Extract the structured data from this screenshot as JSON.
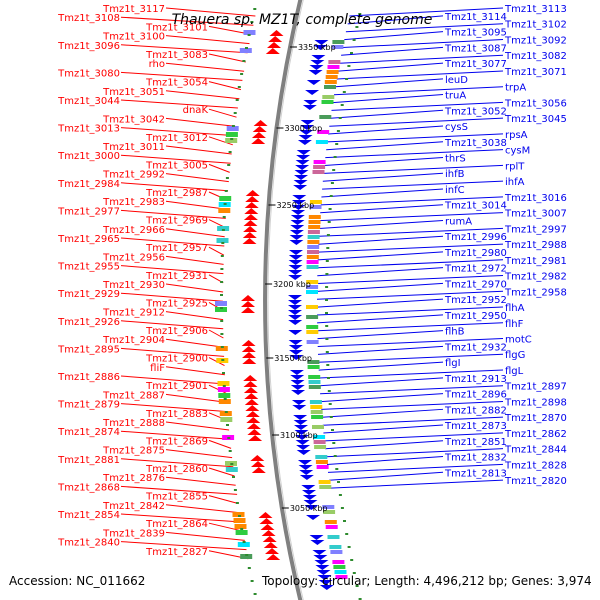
{
  "title": "Thauera sp. MZ1T, complete genome",
  "footer": {
    "accession": "Accession: NC_011662",
    "topology": "Topology: circular; Length: 4,496,212 bp; Genes: 3,974"
  },
  "colors": {
    "forward": "#ff0000",
    "reverse": "#0000ee",
    "backbone": "#808080",
    "tick": "#2e8b2e"
  },
  "scale_ticks": [
    "3350 kbp",
    "3300 kbp",
    "3250 kbp",
    "3200 kbp",
    "3150 kbp",
    "3100 kbp",
    "3050 kbp"
  ],
  "left_labels": [
    "Tmz1t_3117",
    "Tmz1t_3108",
    "Tmz1t_3101",
    "Tmz1t_3100",
    "Tmz1t_3096",
    "Tmz1t_3083",
    "rho",
    "Tmz1t_3080",
    "Tmz1t_3054",
    "Tmz1t_3051",
    "Tmz1t_3044",
    "dnaK",
    "Tmz1t_3042",
    "Tmz1t_3013",
    "Tmz1t_3012",
    "Tmz1t_3011",
    "Tmz1t_3000",
    "Tmz1t_3005",
    "Tmz1t_2992",
    "Tmz1t_2984",
    "Tmz1t_2987",
    "Tmz1t_2983",
    "Tmz1t_2977",
    "Tmz1t_2969",
    "Tmz1t_2966",
    "Tmz1t_2965",
    "Tmz1t_2957",
    "Tmz1t_2956",
    "Tmz1t_2955",
    "Tmz1t_2931",
    "Tmz1t_2930",
    "Tmz1t_2929",
    "Tmz1t_2925",
    "Tmz1t_2912",
    "Tmz1t_2926",
    "Tmz1t_2906",
    "Tmz1t_2904",
    "Tmz1t_2895",
    "Tmz1t_2900",
    "fliF",
    "Tmz1t_2886",
    "Tmz1t_2901",
    "Tmz1t_2887",
    "Tmz1t_2879",
    "Tmz1t_2883",
    "Tmz1t_2888",
    "Tmz1t_2874",
    "Tmz1t_2869",
    "Tmz1t_2875",
    "Tmz1t_2881",
    "Tmz1t_2860",
    "Tmz1t_2876",
    "Tmz1t_2868",
    "Tmz1t_2855",
    "Tmz1t_2842",
    "Tmz1t_2854",
    "Tmz1t_2864",
    "Tmz1t_2839",
    "Tmz1t_2840",
    "Tmz1t_2827"
  ],
  "right_labels": [
    "Tmz1t_3113",
    "Tmz1t_3114",
    "Tmz1t_3102",
    "Tmz1t_3095",
    "Tmz1t_3092",
    "Tmz1t_3087",
    "Tmz1t_3082",
    "Tmz1t_3077",
    "Tmz1t_3071",
    "leuD",
    "trpA",
    "truA",
    "Tmz1t_3056",
    "Tmz1t_3052",
    "Tmz1t_3045",
    "cysS",
    "rpsA",
    "Tmz1t_3038",
    "cysM",
    "thrS",
    "rplT",
    "ihfB",
    "ihfA",
    "infC",
    "Tmz1t_3016",
    "Tmz1t_3014",
    "Tmz1t_3007",
    "rumA",
    "Tmz1t_2997",
    "Tmz1t_2996",
    "Tmz1t_2988",
    "Tmz1t_2980",
    "Tmz1t_2981",
    "Tmz1t_2972",
    "Tmz1t_2982",
    "Tmz1t_2970",
    "Tmz1t_2958",
    "Tmz1t_2952",
    "flhA",
    "Tmz1t_2950",
    "flhF",
    "flhB",
    "motC",
    "Tmz1t_2932",
    "flgG",
    "flgI",
    "flgL",
    "Tmz1t_2913",
    "Tmz1t_2897",
    "Tmz1t_2896",
    "Tmz1t_2898",
    "Tmz1t_2882",
    "Tmz1t_2870",
    "Tmz1t_2873",
    "Tmz1t_2862",
    "Tmz1t_2851",
    "Tmz1t_2844",
    "Tmz1t_2832",
    "Tmz1t_2828",
    "Tmz1t_2813",
    "Tmz1t_2820"
  ]
}
